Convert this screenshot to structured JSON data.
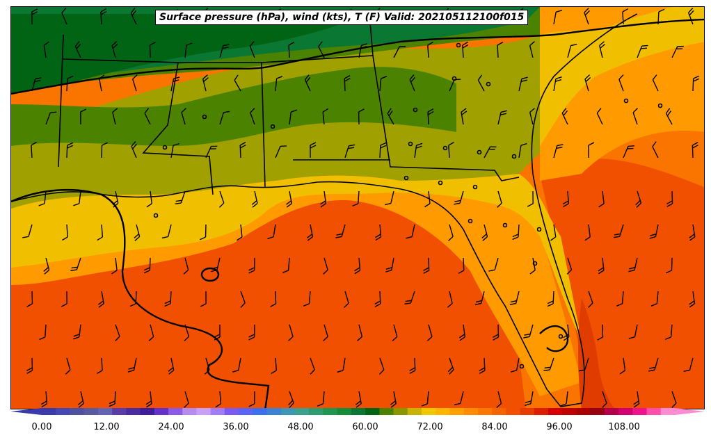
{
  "title": "Surface pressure (hPa), wind (kts), T (F) Valid: 202105112100f015",
  "colorbar": {
    "tick_labels": [
      "0.00",
      "12.00",
      "24.00",
      "36.00",
      "48.00",
      "60.00",
      "72.00",
      "84.00",
      "96.00",
      "108.00"
    ],
    "range": [
      -3,
      117
    ],
    "colors": [
      "#3a3aa8",
      "#4646b4",
      "#5050a0",
      "#5a5a9e",
      "#6464b4",
      "#5a3ca8",
      "#4b2ca0",
      "#3c1e9a",
      "#6432c8",
      "#8c5ae6",
      "#b48cf0",
      "#c8a0fa",
      "#a07cf5",
      "#7a5af0",
      "#5a64f5",
      "#3c6ef0",
      "#3c82d2",
      "#3c96b4",
      "#3ca08c",
      "#2d9b6e",
      "#1e9650",
      "#148c3c",
      "#0a7832",
      "#006414",
      "#4b8200",
      "#8c9600",
      "#c8b400",
      "#f0c800",
      "#ffb400",
      "#ffa000",
      "#ff8c00",
      "#fa7800",
      "#f56400",
      "#f05000",
      "#e63c00",
      "#dc1e00",
      "#d20000",
      "#be0000",
      "#aa0000",
      "#960014",
      "#b4004b",
      "#d2006e",
      "#f0148c",
      "#fa50aa",
      "#ff8cd2"
    ]
  },
  "map": {
    "field": "temperature (F)",
    "regions": [
      {
        "label": "coolest",
        "color": "#006414"
      },
      {
        "label": "cool",
        "color": "#0a7832"
      },
      {
        "label": "mild",
        "color": "#4b8200"
      },
      {
        "label": "warm-olive",
        "color": "#a0a000"
      },
      {
        "label": "warm-yellow",
        "color": "#f0c000"
      },
      {
        "label": "hot-orange",
        "color": "#ff9a00"
      },
      {
        "label": "hot",
        "color": "#fa7400"
      },
      {
        "label": "hotter",
        "color": "#f05000"
      },
      {
        "label": "hottest",
        "color": "#e03c00"
      }
    ],
    "isobar_color": "#000000",
    "boundary_color": "#000000"
  }
}
